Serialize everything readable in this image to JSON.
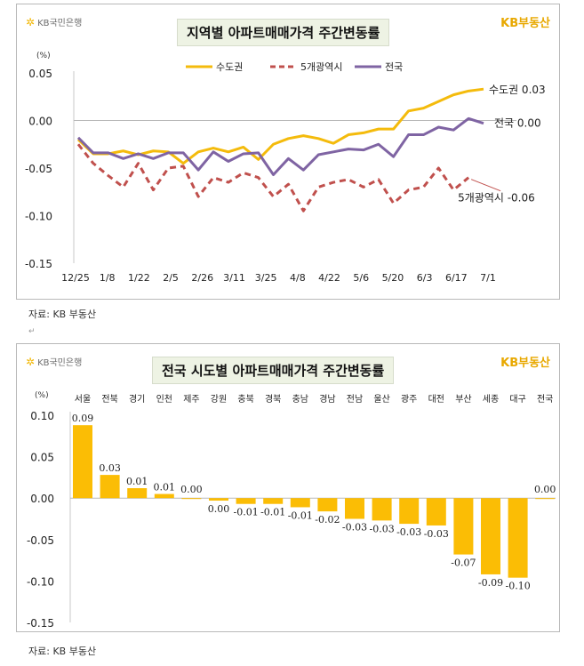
{
  "chart_data": [
    {
      "type": "line",
      "title": "지역별 아파트매매가격 주간변동률",
      "ylabel": "(%)",
      "ylim": [
        -0.15,
        0.05
      ],
      "yticks": [
        0.05,
        0.0,
        -0.05,
        -0.1,
        -0.15
      ],
      "ytick_labels": [
        "0.05",
        "0.00",
        "-0.05",
        "-0.10",
        "-0.15"
      ],
      "x_tick_labels": [
        "12/25",
        "1/8",
        "1/22",
        "2/5",
        "2/26",
        "3/11",
        "3/25",
        "4/8",
        "4/22",
        "5/6",
        "5/20",
        "6/3",
        "6/17",
        "7/1"
      ],
      "legend_position": "top",
      "series": [
        {
          "name": "수도권",
          "color": "#f4bb0c",
          "style": "solid",
          "values": [
            -0.02,
            -0.035,
            -0.035,
            -0.032,
            -0.036,
            -0.032,
            -0.033,
            -0.045,
            -0.033,
            -0.029,
            -0.033,
            -0.028,
            -0.041,
            -0.025,
            -0.019,
            -0.016,
            -0.019,
            -0.024,
            -0.015,
            -0.013,
            -0.009,
            -0.009,
            0.01,
            0.013,
            0.02,
            0.027,
            0.031,
            0.033
          ],
          "end_label": "수도권 0.03"
        },
        {
          "name": "5개광역시",
          "color": "#c0504d",
          "style": "dashed",
          "values": [
            -0.025,
            -0.045,
            -0.058,
            -0.07,
            -0.045,
            -0.073,
            -0.05,
            -0.048,
            -0.08,
            -0.06,
            -0.065,
            -0.055,
            -0.06,
            -0.08,
            -0.067,
            -0.095,
            -0.07,
            -0.065,
            -0.062,
            -0.07,
            -0.062,
            -0.087,
            -0.073,
            -0.07,
            -0.05,
            -0.073,
            -0.06
          ],
          "end_label": "5개광역시 -0.06"
        },
        {
          "name": "전국",
          "color": "#7f64a3",
          "style": "solid",
          "values": [
            -0.018,
            -0.034,
            -0.034,
            -0.04,
            -0.035,
            -0.04,
            -0.034,
            -0.034,
            -0.052,
            -0.033,
            -0.043,
            -0.035,
            -0.034,
            -0.057,
            -0.04,
            -0.052,
            -0.036,
            -0.033,
            -0.03,
            -0.031,
            -0.025,
            -0.038,
            -0.015,
            -0.015,
            -0.007,
            -0.01,
            0.002,
            -0.003
          ],
          "end_label": "전국 0.00"
        }
      ]
    },
    {
      "type": "bar",
      "title": "전국 시도별 아파트매매가격 주간변동률",
      "ylabel": "(%)",
      "ylim": [
        -0.15,
        0.1
      ],
      "yticks": [
        0.1,
        0.05,
        0.0,
        -0.05,
        -0.1,
        -0.15
      ],
      "ytick_labels": [
        "0.10",
        "0.05",
        "0.00",
        "-0.05",
        "-0.10",
        "-0.15"
      ],
      "color": "#fbbd05",
      "categories": [
        "서울",
        "전북",
        "경기",
        "인천",
        "제주",
        "강원",
        "충북",
        "경북",
        "충남",
        "경남",
        "전남",
        "울산",
        "광주",
        "대전",
        "부산",
        "세종",
        "대구",
        "전국"
      ],
      "values": [
        0.088,
        0.028,
        0.012,
        0.005,
        0.0,
        -0.003,
        -0.007,
        -0.007,
        -0.011,
        -0.016,
        -0.025,
        -0.027,
        -0.031,
        -0.033,
        -0.068,
        -0.092,
        -0.096,
        0.0
      ],
      "value_labels": [
        "0.09",
        "0.03",
        "0.01",
        "0.01",
        "0.00",
        "0.00",
        "-0.01",
        "-0.01",
        "-0.01",
        "-0.02",
        "-0.03",
        "-0.03",
        "-0.03",
        "-0.03",
        "-0.07",
        "-0.09",
        "-0.10",
        "0.00"
      ]
    }
  ],
  "branding": {
    "bank": "KB국민은행",
    "realty": "KB부동산"
  },
  "source": "자료: KB 부동산"
}
